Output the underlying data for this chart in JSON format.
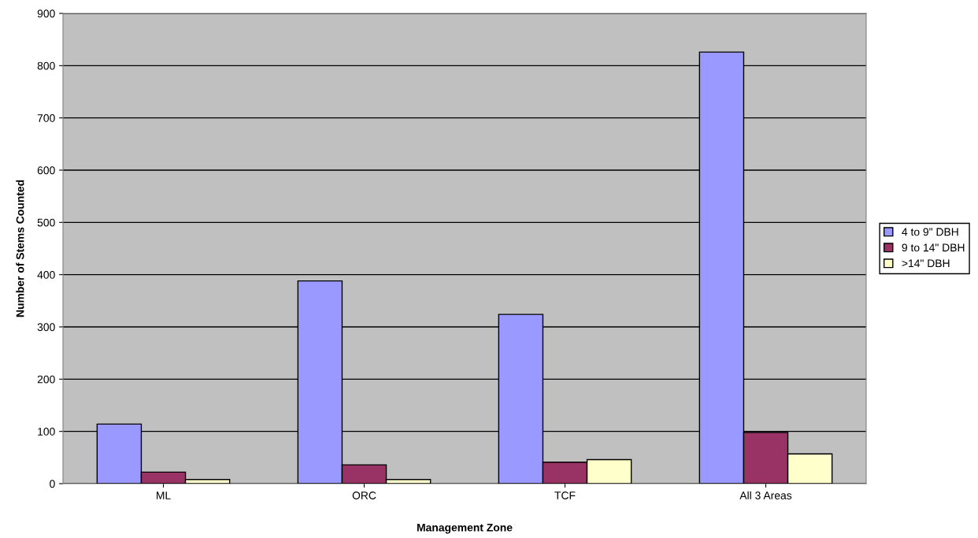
{
  "chart_data": {
    "type": "bar",
    "xlabel": "Management Zone",
    "ylabel": "Number of Stems Counted",
    "categories": [
      "ML",
      "ORC",
      "TCF",
      "All 3 Areas"
    ],
    "series": [
      {
        "name": "4 to 9\" DBH",
        "color": "#9999ff",
        "values": [
          114,
          388,
          324,
          826
        ]
      },
      {
        "name": "9 to 14\" DBH",
        "color": "#993366",
        "values": [
          22,
          36,
          41,
          98
        ]
      },
      {
        "name": ">14\" DBH",
        "color": "#ffffcc",
        "values": [
          8,
          8,
          46,
          57
        ]
      }
    ],
    "ylim": [
      0,
      900
    ],
    "yticks": [
      0,
      100,
      200,
      300,
      400,
      500,
      600,
      700,
      800,
      900
    ],
    "grid": "y",
    "legend": "right"
  }
}
